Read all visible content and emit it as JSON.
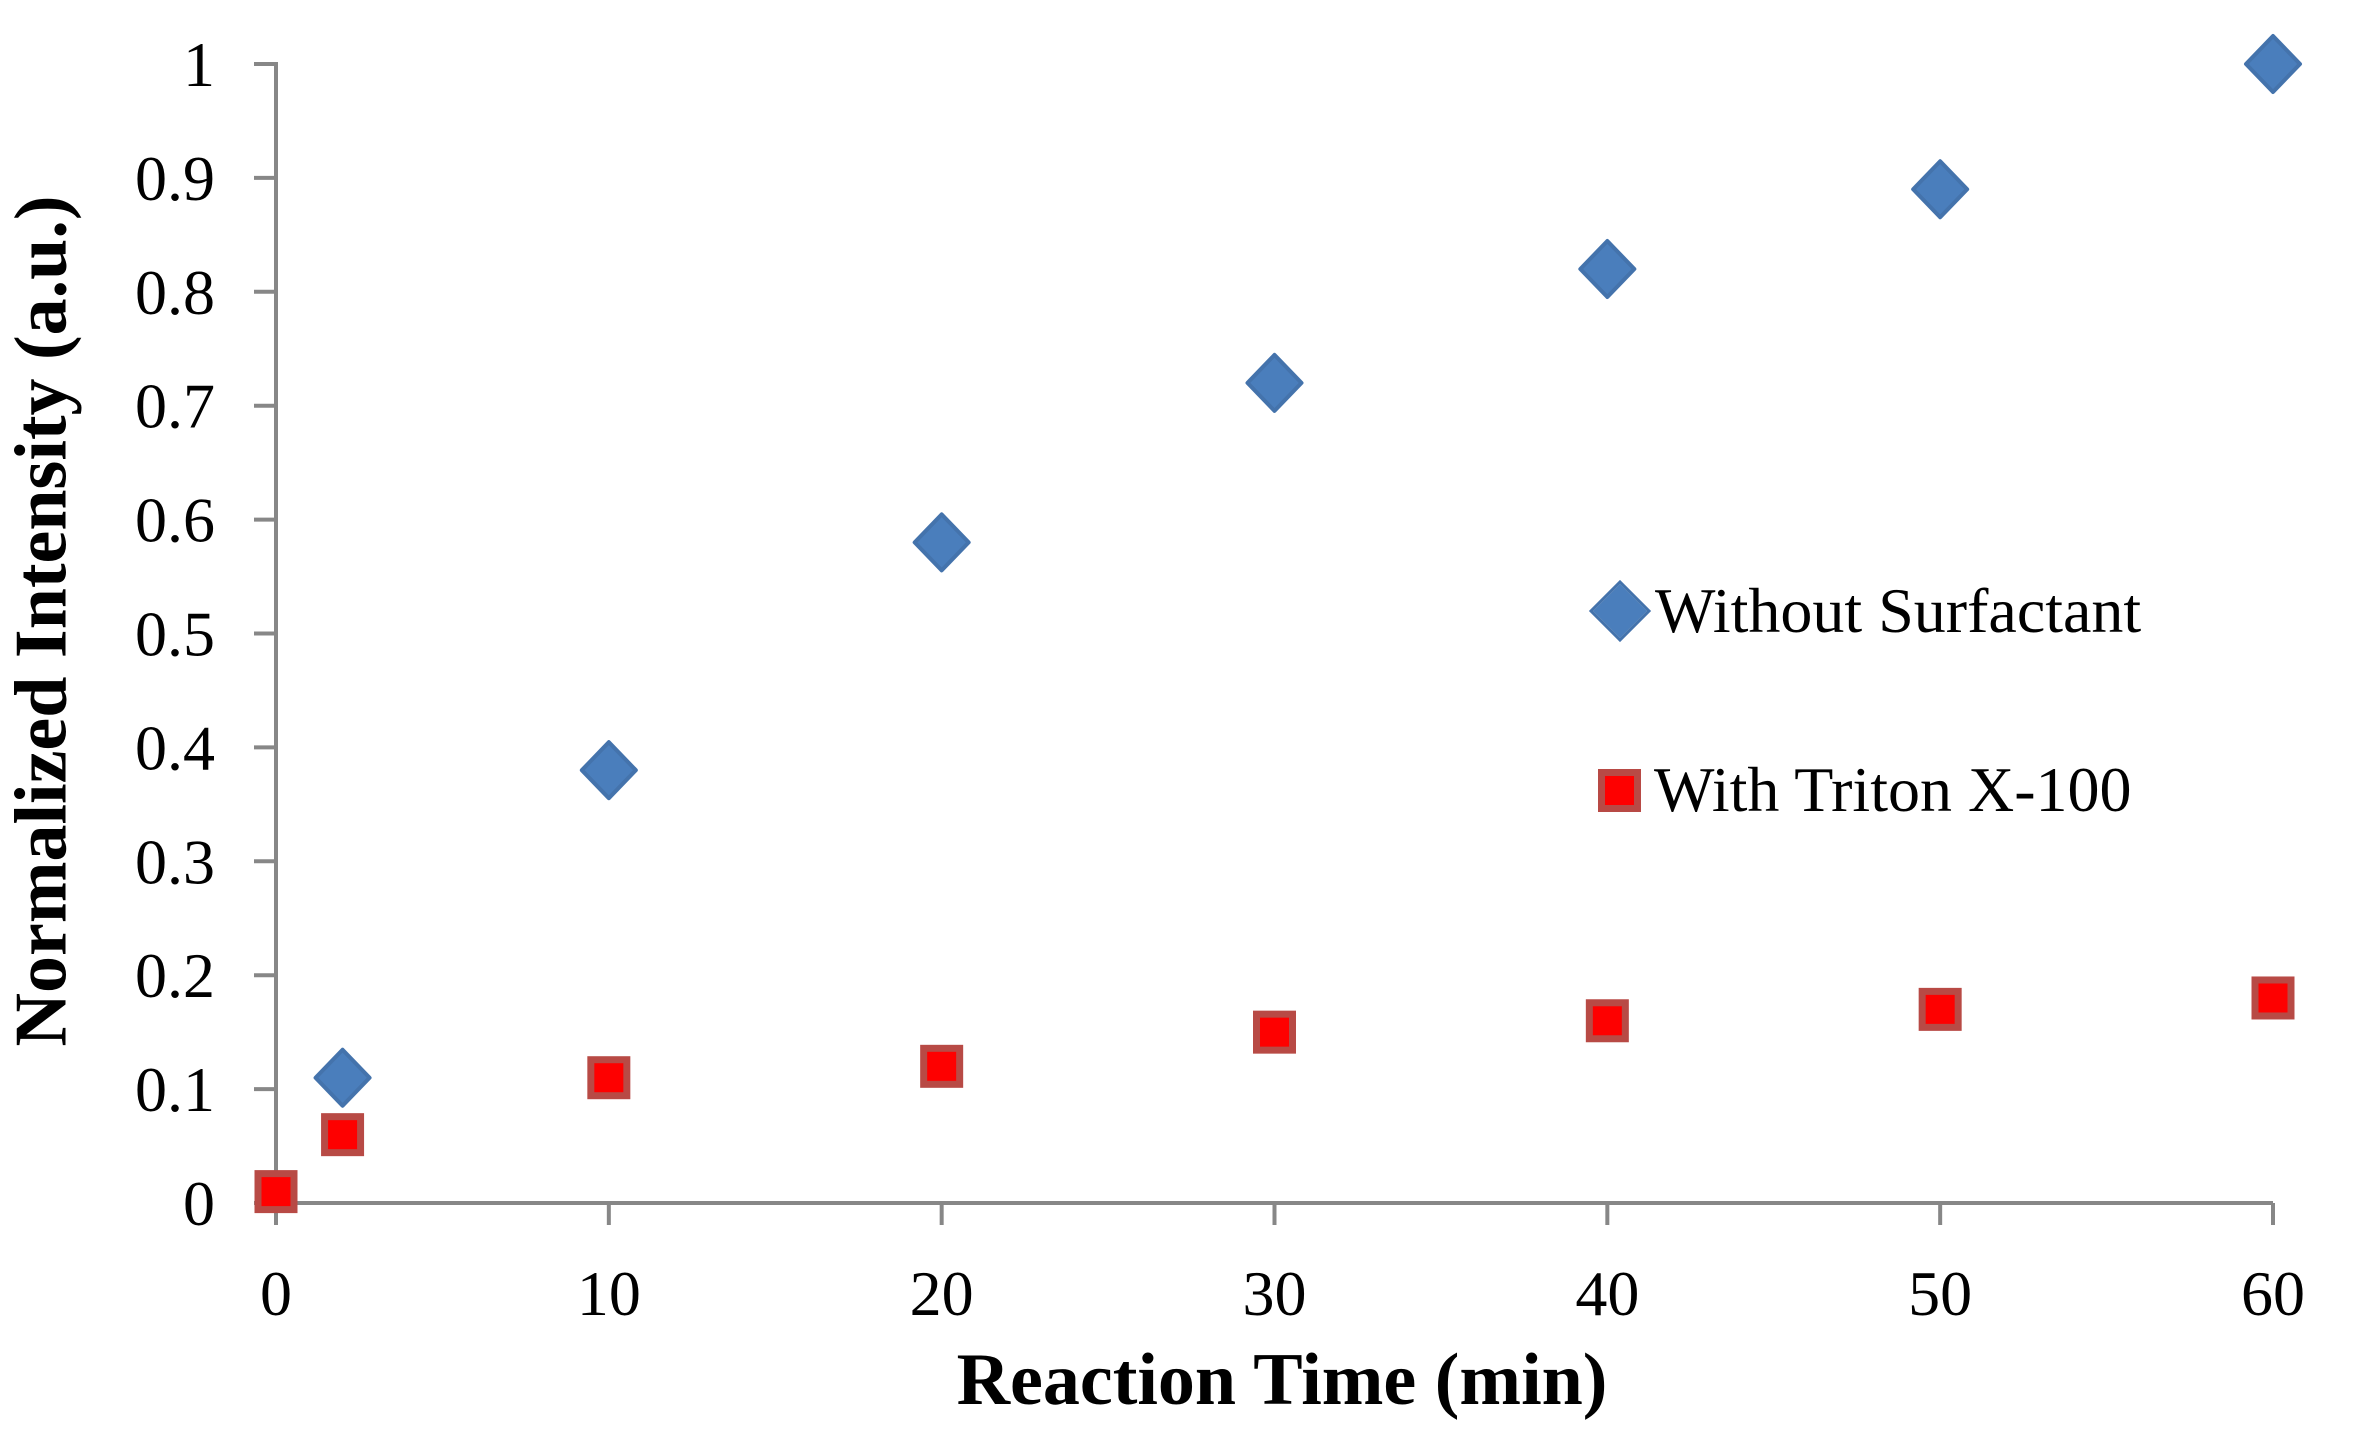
{
  "chart_data": {
    "type": "scatter",
    "title": "",
    "xlabel": "Reaction Time (min)",
    "ylabel": "Normalized Intensity (a.u.)",
    "xlim": [
      0,
      60
    ],
    "ylim": [
      0,
      1
    ],
    "xticks": [
      0,
      10,
      20,
      30,
      40,
      50,
      60
    ],
    "yticks": [
      0,
      0.1,
      0.2,
      0.3,
      0.4,
      0.5,
      0.6,
      0.7,
      0.8,
      0.9,
      1
    ],
    "grid": false,
    "legend_position": "middle-right",
    "axis_color": "#878787",
    "text_color": "#000000",
    "series": [
      {
        "name": "Without Surfactant",
        "marker": "diamond",
        "fill_color": "#4a7ebc",
        "border_color": "#4473ac",
        "points": [
          [
            2,
            0.11
          ],
          [
            10,
            0.38
          ],
          [
            20,
            0.58
          ],
          [
            30,
            0.72
          ],
          [
            40,
            0.82
          ],
          [
            50,
            0.89
          ],
          [
            60,
            1.0
          ]
        ]
      },
      {
        "name": "With Triton X-100",
        "marker": "square",
        "fill_color": "#fe0000",
        "border_color": "#b84a45",
        "points": [
          [
            0,
            0.01
          ],
          [
            2,
            0.06
          ],
          [
            10,
            0.11
          ],
          [
            20,
            0.12
          ],
          [
            30,
            0.15
          ],
          [
            40,
            0.16
          ],
          [
            50,
            0.17
          ],
          [
            60,
            0.18
          ]
        ]
      }
    ]
  }
}
